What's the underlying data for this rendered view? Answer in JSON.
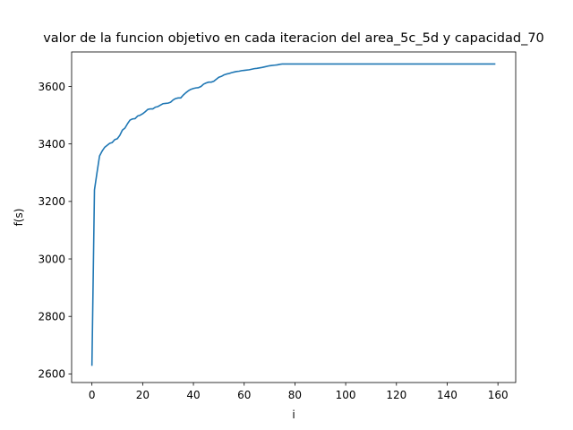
{
  "chart_data": {
    "type": "line",
    "title": "valor de la funcion objetivo en cada iteracion del area_5c_5d y capacidad_70",
    "xlabel": "i",
    "ylabel": "f(s)",
    "xlim": [
      -8,
      167
    ],
    "ylim": [
      2570,
      3720
    ],
    "xticks": [
      0,
      20,
      40,
      60,
      80,
      100,
      120,
      140,
      160
    ],
    "yticks": [
      2600,
      2800,
      3000,
      3200,
      3400,
      3600
    ],
    "xtick_labels": [
      "0",
      "20",
      "40",
      "60",
      "80",
      "100",
      "120",
      "140",
      "160"
    ],
    "ytick_labels": [
      "2600",
      "2800",
      "3000",
      "3200",
      "3400",
      "3600"
    ],
    "grid": false,
    "series": [
      {
        "color": "#1f77b4",
        "points": [
          [
            0,
            2628
          ],
          [
            1,
            3240
          ],
          [
            2,
            3300
          ],
          [
            3,
            3358
          ],
          [
            4,
            3375
          ],
          [
            5,
            3388
          ],
          [
            6,
            3395
          ],
          [
            7,
            3402
          ],
          [
            8,
            3405
          ],
          [
            9,
            3415
          ],
          [
            10,
            3418
          ],
          [
            11,
            3430
          ],
          [
            12,
            3448
          ],
          [
            13,
            3455
          ],
          [
            14,
            3470
          ],
          [
            15,
            3483
          ],
          [
            16,
            3487
          ],
          [
            17,
            3488
          ],
          [
            18,
            3497
          ],
          [
            19,
            3500
          ],
          [
            20,
            3505
          ],
          [
            21,
            3512
          ],
          [
            22,
            3520
          ],
          [
            23,
            3522
          ],
          [
            24,
            3522
          ],
          [
            25,
            3528
          ],
          [
            26,
            3530
          ],
          [
            27,
            3535
          ],
          [
            28,
            3540
          ],
          [
            29,
            3541
          ],
          [
            30,
            3542
          ],
          [
            31,
            3545
          ],
          [
            32,
            3553
          ],
          [
            33,
            3558
          ],
          [
            34,
            3560
          ],
          [
            35,
            3560
          ],
          [
            36,
            3570
          ],
          [
            37,
            3578
          ],
          [
            38,
            3585
          ],
          [
            39,
            3590
          ],
          [
            40,
            3593
          ],
          [
            41,
            3595
          ],
          [
            42,
            3596
          ],
          [
            43,
            3600
          ],
          [
            44,
            3608
          ],
          [
            45,
            3612
          ],
          [
            46,
            3615
          ],
          [
            47,
            3615
          ],
          [
            48,
            3618
          ],
          [
            49,
            3625
          ],
          [
            50,
            3632
          ],
          [
            51,
            3635
          ],
          [
            52,
            3640
          ],
          [
            53,
            3643
          ],
          [
            54,
            3645
          ],
          [
            55,
            3648
          ],
          [
            56,
            3650
          ],
          [
            57,
            3652
          ],
          [
            58,
            3653
          ],
          [
            59,
            3655
          ],
          [
            60,
            3656
          ],
          [
            62,
            3658
          ],
          [
            63,
            3660
          ],
          [
            64,
            3662
          ],
          [
            65,
            3663
          ],
          [
            67,
            3666
          ],
          [
            68,
            3668
          ],
          [
            70,
            3672
          ],
          [
            71,
            3673
          ],
          [
            72,
            3674
          ],
          [
            73,
            3675
          ],
          [
            74,
            3677
          ],
          [
            75,
            3678
          ],
          [
            159,
            3678
          ]
        ]
      }
    ]
  }
}
